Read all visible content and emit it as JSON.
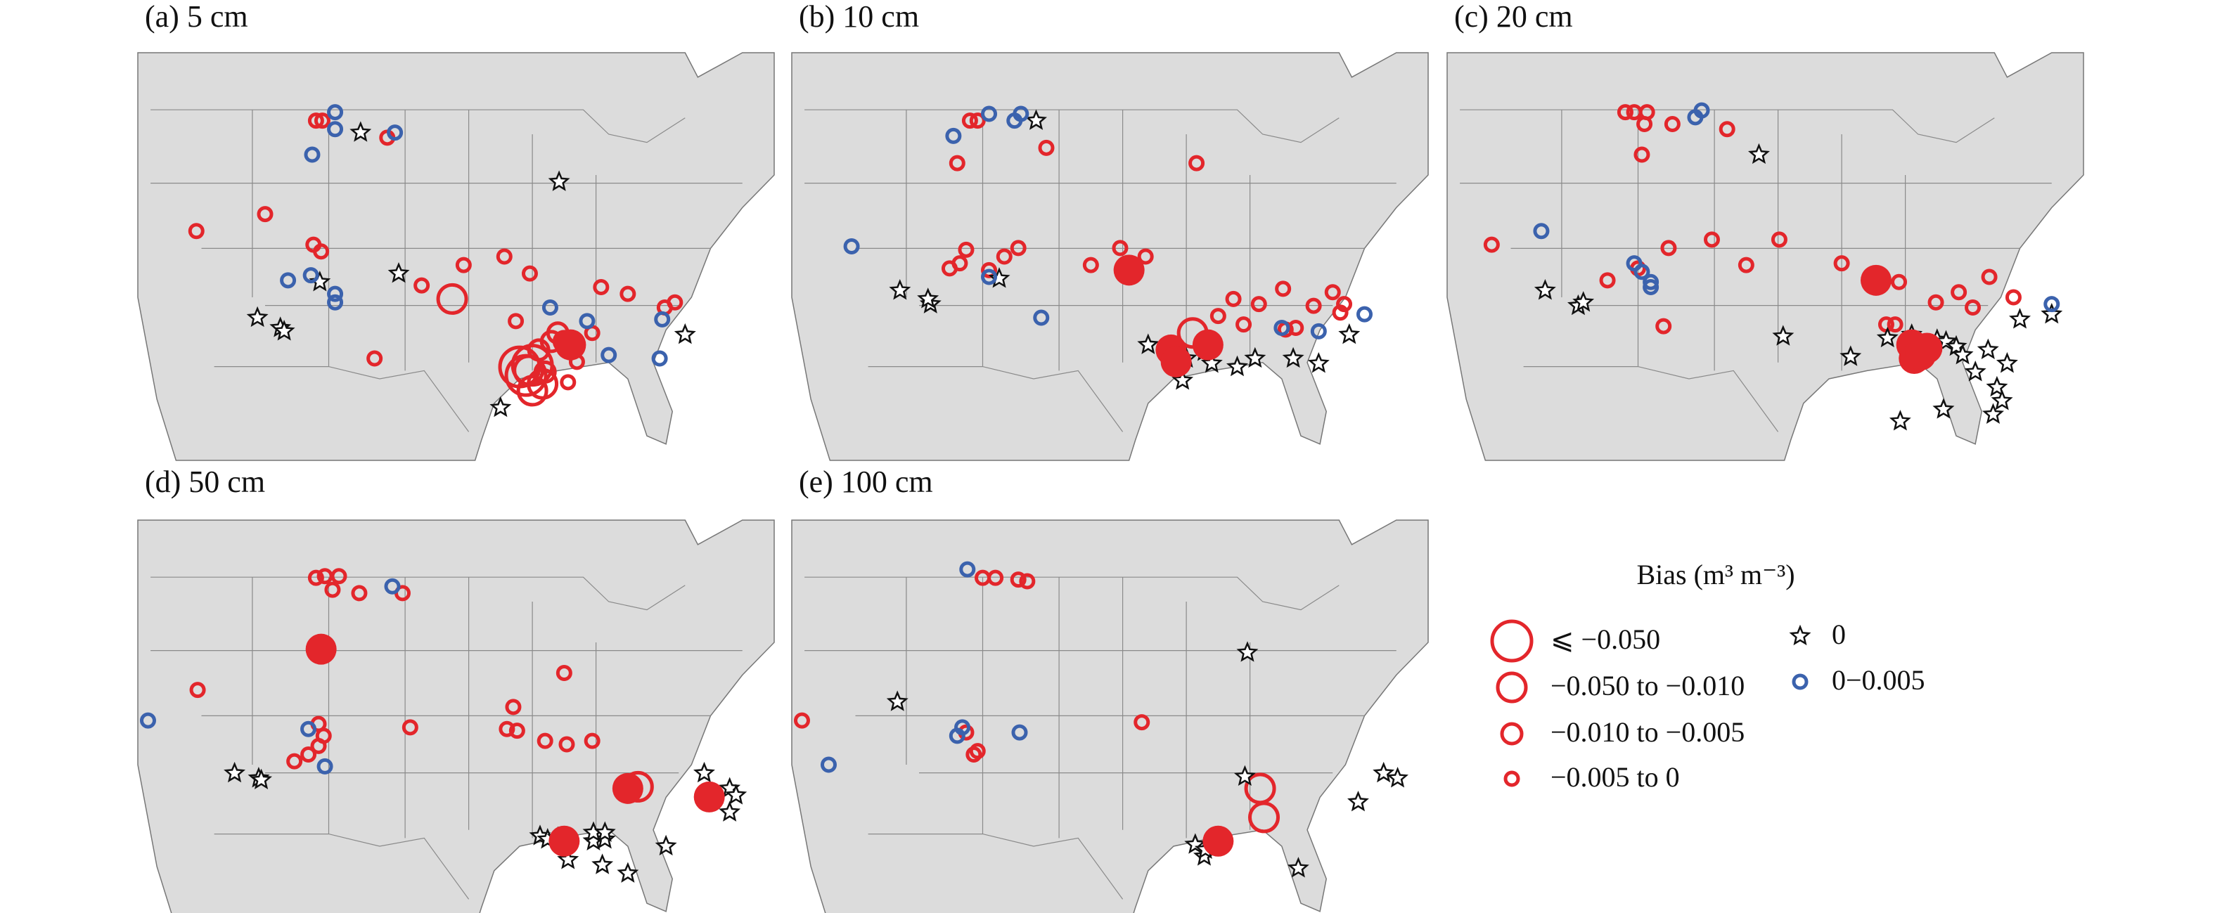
{
  "panels": [
    {
      "title": "(a) 5 cm",
      "stations": [
        [
          [
            -94,
            32.5
          ],
          [
            -93,
            32.6
          ],
          [
            -93.5,
            32
          ]
        ],
        [
          [
            -99.3,
            36.5
          ],
          [
            -93.3,
            32.3
          ],
          [
            -92.2,
            31.5
          ],
          [
            -93,
            31.1
          ]
        ],
        [
          [
            -92.5,
            33.5
          ],
          [
            -91.5,
            34
          ],
          [
            -91,
            34.5
          ],
          [
            -92,
            32.2
          ],
          [
            -90.5,
            34
          ]
        ],
        [
          [
            -110,
            47
          ],
          [
            -109.5,
            47
          ],
          [
            -104.4,
            46
          ],
          [
            -119.4,
            40.5
          ],
          [
            -114,
            41.5
          ],
          [
            -110.2,
            39.7
          ],
          [
            -109.6,
            39.3
          ],
          [
            -101.7,
            37.3
          ],
          [
            -98.4,
            38.5
          ],
          [
            -95.2,
            39
          ],
          [
            -93.2,
            38
          ],
          [
            -87.6,
            37.2
          ],
          [
            -85.5,
            36.8
          ],
          [
            -82.6,
            36
          ],
          [
            -81.8,
            36.3
          ],
          [
            -105.4,
            33
          ],
          [
            -89.5,
            32.8
          ],
          [
            -88.3,
            34.5
          ],
          [
            -90.2,
            31.6
          ],
          [
            -94.3,
            35.2
          ]
        ],
        [
          [
            -106.5,
            46.3
          ],
          [
            -90.9,
            43.4
          ],
          [
            -103.5,
            38
          ],
          [
            -109.7,
            37.5
          ],
          [
            -114.6,
            35.4
          ],
          [
            -112.8,
            34.8
          ],
          [
            -112.5,
            34.6
          ],
          [
            -95.5,
            30.1
          ],
          [
            -81,
            34.4
          ]
        ],
        [
          [
            -108.5,
            47.5
          ],
          [
            -108.5,
            46.5
          ],
          [
            -103.8,
            46.3
          ],
          [
            -110.3,
            45
          ],
          [
            -112.2,
            37.6
          ],
          [
            -110.4,
            37.9
          ],
          [
            -108.5,
            36.8
          ],
          [
            -108.5,
            36.3
          ],
          [
            -91.6,
            36
          ],
          [
            -88.7,
            35.2
          ],
          [
            -82.8,
            35.3
          ],
          [
            -87,
            33.2
          ],
          [
            -83,
            33
          ]
        ]
      ],
      "filled": [
        [
          -90,
          33.8
        ]
      ]
    },
    {
      "title": "(b) 10 cm",
      "stations": [
        [],
        [
          [
            -92.5,
            34.5
          ]
        ],
        [],
        [
          [
            -110,
            47
          ],
          [
            -109.4,
            47
          ],
          [
            -104,
            45.4
          ],
          [
            -111,
            44.5
          ],
          [
            -110.3,
            39.4
          ],
          [
            -110.8,
            38.6
          ],
          [
            -111.6,
            38.3
          ],
          [
            -108.5,
            38.2
          ],
          [
            -106.2,
            39.5
          ],
          [
            -107.3,
            39
          ],
          [
            -100.5,
            38.5
          ],
          [
            -98.2,
            39.5
          ],
          [
            -96.2,
            39
          ],
          [
            -92.2,
            44.5
          ],
          [
            -90.5,
            35.5
          ],
          [
            -89.3,
            36.5
          ],
          [
            -85.4,
            37.1
          ],
          [
            -83,
            36.1
          ],
          [
            -81.5,
            36.9
          ],
          [
            -80.6,
            36.2
          ],
          [
            -80.9,
            35.7
          ],
          [
            -84.4,
            34.8
          ],
          [
            -85.2,
            34.7
          ],
          [
            -88.5,
            35
          ],
          [
            -87.3,
            36.2
          ]
        ],
        [
          [
            -104.8,
            47
          ],
          [
            -107.7,
            37.7
          ],
          [
            -115.5,
            37
          ],
          [
            -113.1,
            36.2
          ],
          [
            -113.3,
            36.5
          ],
          [
            -96,
            33.8
          ],
          [
            -93,
            33
          ],
          [
            -91.6,
            33.4
          ],
          [
            -91,
            32.7
          ],
          [
            -89,
            32.5
          ],
          [
            -87.6,
            33
          ],
          [
            -84.6,
            33
          ],
          [
            -82.6,
            32.7
          ],
          [
            -80.2,
            34.4
          ],
          [
            -93.3,
            31.7
          ]
        ],
        [
          [
            -108.5,
            47.4
          ],
          [
            -106.5,
            47
          ],
          [
            -106,
            47.4
          ],
          [
            -111.3,
            46.1
          ],
          [
            -119.3,
            39.6
          ],
          [
            -108.5,
            37.8
          ],
          [
            -104.4,
            35.4
          ],
          [
            -82.6,
            34.6
          ],
          [
            -79,
            35.6
          ],
          [
            -85.5,
            34.8
          ]
        ]
      ],
      "filled": [
        [
          -97.5,
          38.2
        ],
        [
          -94.2,
          33.5
        ],
        [
          -93.8,
          32.8
        ],
        [
          -91.3,
          33.8
        ]
      ]
    },
    {
      "title": "(c) 20 cm",
      "stations": [
        [],
        [],
        [],
        [
          [
            -110,
            47.5
          ],
          [
            -109.3,
            47.5
          ],
          [
            -108.3,
            47.5
          ],
          [
            -108.5,
            46.8
          ],
          [
            -106.3,
            46.8
          ],
          [
            -102,
            46.5
          ],
          [
            -108.7,
            45
          ],
          [
            -120.5,
            39.7
          ],
          [
            -109,
            38.3
          ],
          [
            -106.6,
            39.5
          ],
          [
            -103.2,
            40
          ],
          [
            -100.5,
            38.5
          ],
          [
            -97.9,
            40
          ],
          [
            -111.4,
            37.6
          ],
          [
            -107,
            34.9
          ],
          [
            -93,
            38.6
          ],
          [
            -88.5,
            37.5
          ],
          [
            -85.6,
            36.3
          ],
          [
            -83.8,
            36.9
          ],
          [
            -81.4,
            37.8
          ],
          [
            -82.7,
            36
          ],
          [
            -79.5,
            36.6
          ],
          [
            -89.5,
            35
          ],
          [
            -88.8,
            35
          ]
        ],
        [
          [
            -99.5,
            45
          ],
          [
            -116.3,
            37
          ],
          [
            -113.7,
            36.1
          ],
          [
            -113.3,
            36.3
          ],
          [
            -97.6,
            34.3
          ],
          [
            -92.3,
            33.1
          ],
          [
            -89.4,
            34.2
          ],
          [
            -87.5,
            34.4
          ],
          [
            -85.5,
            34.1
          ],
          [
            -84.8,
            34
          ],
          [
            -84,
            33.7
          ],
          [
            -83.5,
            33.2
          ],
          [
            -81.5,
            33.5
          ],
          [
            -80,
            32.7
          ],
          [
            -76.5,
            35.6
          ],
          [
            -79,
            35.3
          ],
          [
            -88.4,
            29.3
          ],
          [
            -85,
            30
          ],
          [
            -80.8,
            31.3
          ],
          [
            -80.4,
            30.5
          ],
          [
            -81.1,
            29.7
          ],
          [
            -86.4,
            33.3
          ],
          [
            -82.5,
            32.2
          ]
        ],
        [
          [
            -104.5,
            47.2
          ],
          [
            -104,
            47.6
          ],
          [
            -116.6,
            40.5
          ],
          [
            -109.3,
            38.6
          ],
          [
            -108.7,
            38.1
          ],
          [
            -108,
            37.5
          ],
          [
            -108,
            37.2
          ],
          [
            -76.5,
            36.2
          ]
        ]
      ],
      "filled": [
        [
          -90.3,
          37.6
        ],
        [
          -87.5,
          33.8
        ],
        [
          -87.3,
          33
        ],
        [
          -86.8,
          33.2
        ],
        [
          -86.3,
          33.6
        ]
      ]
    },
    {
      "title": "(d) 50 cm",
      "stations": [
        [],
        [
          [
            -84.7,
            35.3
          ]
        ],
        [],
        [
          [
            -110,
            47.6
          ],
          [
            -109.3,
            47.7
          ],
          [
            -108.2,
            47.7
          ],
          [
            -108.7,
            46.9
          ],
          [
            -106.6,
            46.7
          ],
          [
            -103.2,
            46.7
          ],
          [
            -119.3,
            41
          ],
          [
            -109.8,
            39
          ],
          [
            -109.4,
            38.3
          ],
          [
            -109.8,
            37.7
          ],
          [
            -110.6,
            37.2
          ],
          [
            -111.7,
            36.8
          ],
          [
            -102.6,
            38.8
          ],
          [
            -94.5,
            40
          ],
          [
            -95,
            38.7
          ],
          [
            -94.2,
            38.6
          ],
          [
            -90.5,
            42
          ],
          [
            -92,
            38
          ],
          [
            -90.3,
            37.8
          ],
          [
            -88.3,
            38
          ]
        ],
        [
          [
            -116.4,
            36.1
          ],
          [
            -114.5,
            35.8
          ],
          [
            -114.3,
            35.7
          ],
          [
            -92.4,
            32.4
          ],
          [
            -91.8,
            32.2
          ],
          [
            -91,
            32.3
          ],
          [
            -88.2,
            32.1
          ],
          [
            -87.3,
            32.2
          ],
          [
            -88.2,
            32.6
          ],
          [
            -87.3,
            32.6
          ],
          [
            -90.2,
            31
          ],
          [
            -87.5,
            30.7
          ],
          [
            -85.5,
            30.2
          ],
          [
            -82.5,
            31.8
          ],
          [
            -79.5,
            36.1
          ],
          [
            -77.5,
            35.2
          ],
          [
            -77,
            34.8
          ],
          [
            -77.5,
            33.8
          ]
        ],
        [
          [
            -104,
            47.1
          ],
          [
            -123.2,
            39.2
          ],
          [
            -110.6,
            38.7
          ],
          [
            -109.3,
            36.5
          ]
        ]
      ],
      "filled": [
        [
          -109.6,
          43.4
        ],
        [
          -85.5,
          35.2
        ],
        [
          -90.5,
          32.1
        ],
        [
          -79.1,
          34.7
        ]
      ]
    },
    {
      "title": "(e) 100 cm",
      "stations": [
        [],
        [
          [
            -87.2,
            35.2
          ],
          [
            -86.9,
            33.5
          ]
        ],
        [],
        [
          [
            -109,
            47.6
          ],
          [
            -108,
            47.6
          ],
          [
            -106.2,
            47.5
          ],
          [
            -105.5,
            47.4
          ],
          [
            -123.2,
            39.2
          ],
          [
            -110.3,
            38.5
          ],
          [
            -109.7,
            37.2
          ],
          [
            -109.4,
            37.4
          ],
          [
            -96.5,
            39.1
          ]
        ],
        [
          [
            -88.2,
            43.2
          ],
          [
            -115.7,
            40.3
          ],
          [
            -88.4,
            35.9
          ],
          [
            -92.3,
            31.9
          ],
          [
            -91.6,
            31.2
          ],
          [
            -91.5,
            31.6
          ],
          [
            -77.5,
            36.1
          ],
          [
            -76.4,
            35.8
          ],
          [
            -79.5,
            34.4
          ],
          [
            -84.2,
            30.5
          ]
        ],
        [
          [
            -110.2,
            48.1
          ],
          [
            -110.6,
            38.8
          ],
          [
            -111,
            38.3
          ],
          [
            -106.1,
            38.5
          ],
          [
            -121.1,
            36.6
          ]
        ]
      ],
      "filled": [
        [
          -90.5,
          32.1
        ]
      ]
    }
  ],
  "legend": {
    "title": "Bias (m³ m⁻³)",
    "entries": [
      {
        "label": "⩽ −0.050",
        "symbol": "circle",
        "color": "#e3262b"
      },
      {
        "label": "−0.050 to −0.010",
        "symbol": "circle",
        "color": "#e3262b"
      },
      {
        "label": "−0.010 to −0.005",
        "symbol": "circle",
        "color": "#e3262b"
      },
      {
        "label": "−0.005 to 0",
        "symbol": "circle",
        "color": "#e3262b"
      },
      {
        "label": "0",
        "symbol": "star",
        "color": "#111111"
      },
      {
        "label": "0−0.005",
        "symbol": "circle",
        "color": "#3b62ad"
      }
    ]
  }
}
